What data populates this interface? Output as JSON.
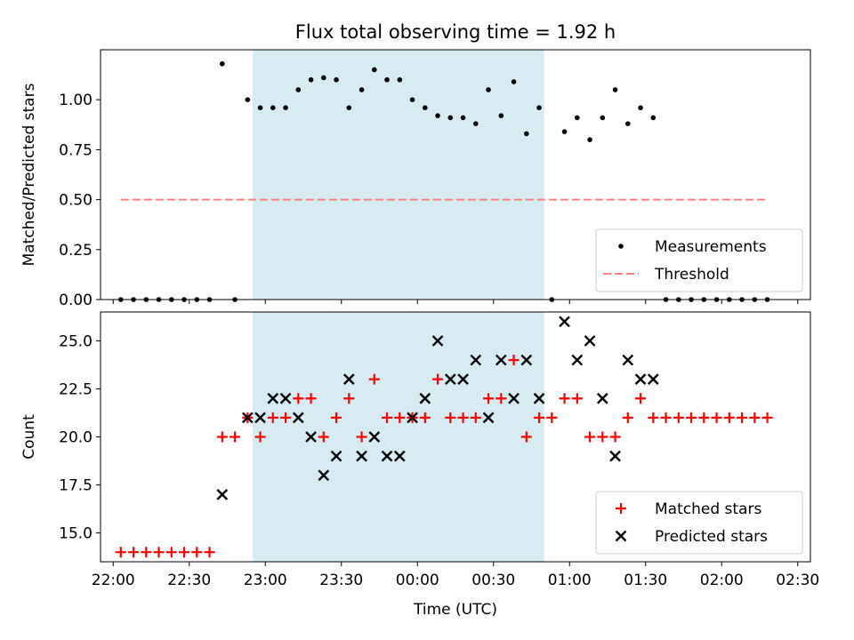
{
  "chart_data": {
    "type": "scatter",
    "title": "Flux total observing time = 1.92 h",
    "xlabel": "Time (UTC)",
    "x_unit": "HH:MM",
    "xlim": [
      "21:55",
      "02:35"
    ],
    "xticks": [
      "22:00",
      "22:30",
      "23:00",
      "23:30",
      "00:00",
      "00:30",
      "01:00",
      "01:30",
      "02:00",
      "02:30"
    ],
    "shaded_span": {
      "start": "22:55",
      "end": "00:50",
      "color": "#add8e6"
    },
    "panels": [
      {
        "ylabel": "Matched/Predicted stars",
        "ylim": [
          0,
          1.25
        ],
        "yticks": [
          "0.00",
          "0.25",
          "0.50",
          "0.75",
          "1.00"
        ],
        "legend_position": "lower right",
        "series": [
          {
            "name": "Measurements",
            "marker": "dot",
            "color": "#000000",
            "points": [
              [
                "22:03",
                0
              ],
              [
                "22:08",
                0
              ],
              [
                "22:13",
                0
              ],
              [
                "22:18",
                0
              ],
              [
                "22:23",
                0
              ],
              [
                "22:28",
                0
              ],
              [
                "22:33",
                0
              ],
              [
                "22:38",
                0
              ],
              [
                "22:43",
                1.18
              ],
              [
                "22:48",
                0
              ],
              [
                "22:53",
                1.0
              ],
              [
                "22:58",
                0.96
              ],
              [
                "23:03",
                0.96
              ],
              [
                "23:08",
                0.96
              ],
              [
                "23:13",
                1.05
              ],
              [
                "23:18",
                1.1
              ],
              [
                "23:23",
                1.11
              ],
              [
                "23:28",
                1.1
              ],
              [
                "23:33",
                0.96
              ],
              [
                "23:38",
                1.05
              ],
              [
                "23:43",
                1.15
              ],
              [
                "23:48",
                1.1
              ],
              [
                "23:53",
                1.1
              ],
              [
                "23:58",
                1.0
              ],
              [
                "00:03",
                0.96
              ],
              [
                "00:08",
                0.92
              ],
              [
                "00:13",
                0.91
              ],
              [
                "00:18",
                0.91
              ],
              [
                "00:23",
                0.88
              ],
              [
                "00:28",
                1.05
              ],
              [
                "00:33",
                0.92
              ],
              [
                "00:38",
                1.09
              ],
              [
                "00:43",
                0.83
              ],
              [
                "00:48",
                0.96
              ],
              [
                "00:53",
                0
              ],
              [
                "00:58",
                0.84
              ],
              [
                "01:03",
                0.91
              ],
              [
                "01:08",
                0.8
              ],
              [
                "01:13",
                0.91
              ],
              [
                "01:18",
                1.05
              ],
              [
                "01:23",
                0.88
              ],
              [
                "01:28",
                0.96
              ],
              [
                "01:33",
                0.91
              ],
              [
                "01:38",
                0
              ],
              [
                "01:43",
                0
              ],
              [
                "01:48",
                0
              ],
              [
                "01:53",
                0
              ],
              [
                "01:58",
                0
              ],
              [
                "02:03",
                0
              ],
              [
                "02:08",
                0
              ],
              [
                "02:13",
                0
              ],
              [
                "02:18",
                0
              ]
            ]
          },
          {
            "name": "Threshold",
            "marker": "dashed-line",
            "color": "#ff7f7f",
            "points": [
              [
                "22:03",
                0.5
              ],
              [
                "02:18",
                0.5
              ]
            ]
          }
        ]
      },
      {
        "ylabel": "Count",
        "ylim": [
          13.5,
          26.5
        ],
        "yticks": [
          "15.0",
          "17.5",
          "20.0",
          "22.5",
          "25.0"
        ],
        "legend_position": "lower right",
        "series": [
          {
            "name": "Matched stars",
            "marker": "plus",
            "color": "#ff0000",
            "points": [
              [
                "22:03",
                14
              ],
              [
                "22:08",
                14
              ],
              [
                "22:13",
                14
              ],
              [
                "22:18",
                14
              ],
              [
                "22:23",
                14
              ],
              [
                "22:28",
                14
              ],
              [
                "22:33",
                14
              ],
              [
                "22:38",
                14
              ],
              [
                "22:43",
                20
              ],
              [
                "22:48",
                20
              ],
              [
                "22:53",
                21
              ],
              [
                "22:58",
                20
              ],
              [
                "23:03",
                21
              ],
              [
                "23:08",
                21
              ],
              [
                "23:13",
                22
              ],
              [
                "23:18",
                22
              ],
              [
                "23:23",
                20
              ],
              [
                "23:28",
                21
              ],
              [
                "23:33",
                22
              ],
              [
                "23:38",
                20
              ],
              [
                "23:43",
                23
              ],
              [
                "23:48",
                21
              ],
              [
                "23:53",
                21
              ],
              [
                "23:58",
                21
              ],
              [
                "00:03",
                21
              ],
              [
                "00:08",
                23
              ],
              [
                "00:13",
                21
              ],
              [
                "00:18",
                21
              ],
              [
                "00:23",
                21
              ],
              [
                "00:28",
                22
              ],
              [
                "00:33",
                22
              ],
              [
                "00:38",
                24
              ],
              [
                "00:43",
                20
              ],
              [
                "00:48",
                21
              ],
              [
                "00:53",
                21
              ],
              [
                "00:58",
                22
              ],
              [
                "01:03",
                22
              ],
              [
                "01:08",
                20
              ],
              [
                "01:13",
                20
              ],
              [
                "01:18",
                20
              ],
              [
                "01:23",
                21
              ],
              [
                "01:28",
                22
              ],
              [
                "01:33",
                21
              ],
              [
                "01:38",
                21
              ],
              [
                "01:43",
                21
              ],
              [
                "01:48",
                21
              ],
              [
                "01:53",
                21
              ],
              [
                "01:58",
                21
              ],
              [
                "02:03",
                21
              ],
              [
                "02:08",
                21
              ],
              [
                "02:13",
                21
              ],
              [
                "02:18",
                21
              ]
            ]
          },
          {
            "name": "Predicted stars",
            "marker": "x",
            "color": "#000000",
            "points": [
              [
                "22:43",
                17
              ],
              [
                "22:53",
                21
              ],
              [
                "22:58",
                21
              ],
              [
                "23:03",
                22
              ],
              [
                "23:08",
                22
              ],
              [
                "23:13",
                21
              ],
              [
                "23:18",
                20
              ],
              [
                "23:23",
                18
              ],
              [
                "23:28",
                19
              ],
              [
                "23:33",
                23
              ],
              [
                "23:38",
                19
              ],
              [
                "23:43",
                20
              ],
              [
                "23:48",
                19
              ],
              [
                "23:53",
                19
              ],
              [
                "23:58",
                21
              ],
              [
                "00:03",
                22
              ],
              [
                "00:08",
                25
              ],
              [
                "00:13",
                23
              ],
              [
                "00:18",
                23
              ],
              [
                "00:23",
                24
              ],
              [
                "00:28",
                21
              ],
              [
                "00:33",
                24
              ],
              [
                "00:38",
                22
              ],
              [
                "00:43",
                24
              ],
              [
                "00:48",
                22
              ],
              [
                "00:58",
                26
              ],
              [
                "01:03",
                24
              ],
              [
                "01:08",
                25
              ],
              [
                "01:13",
                22
              ],
              [
                "01:18",
                19
              ],
              [
                "01:23",
                24
              ],
              [
                "01:28",
                23
              ],
              [
                "01:33",
                23
              ]
            ]
          }
        ]
      }
    ]
  }
}
